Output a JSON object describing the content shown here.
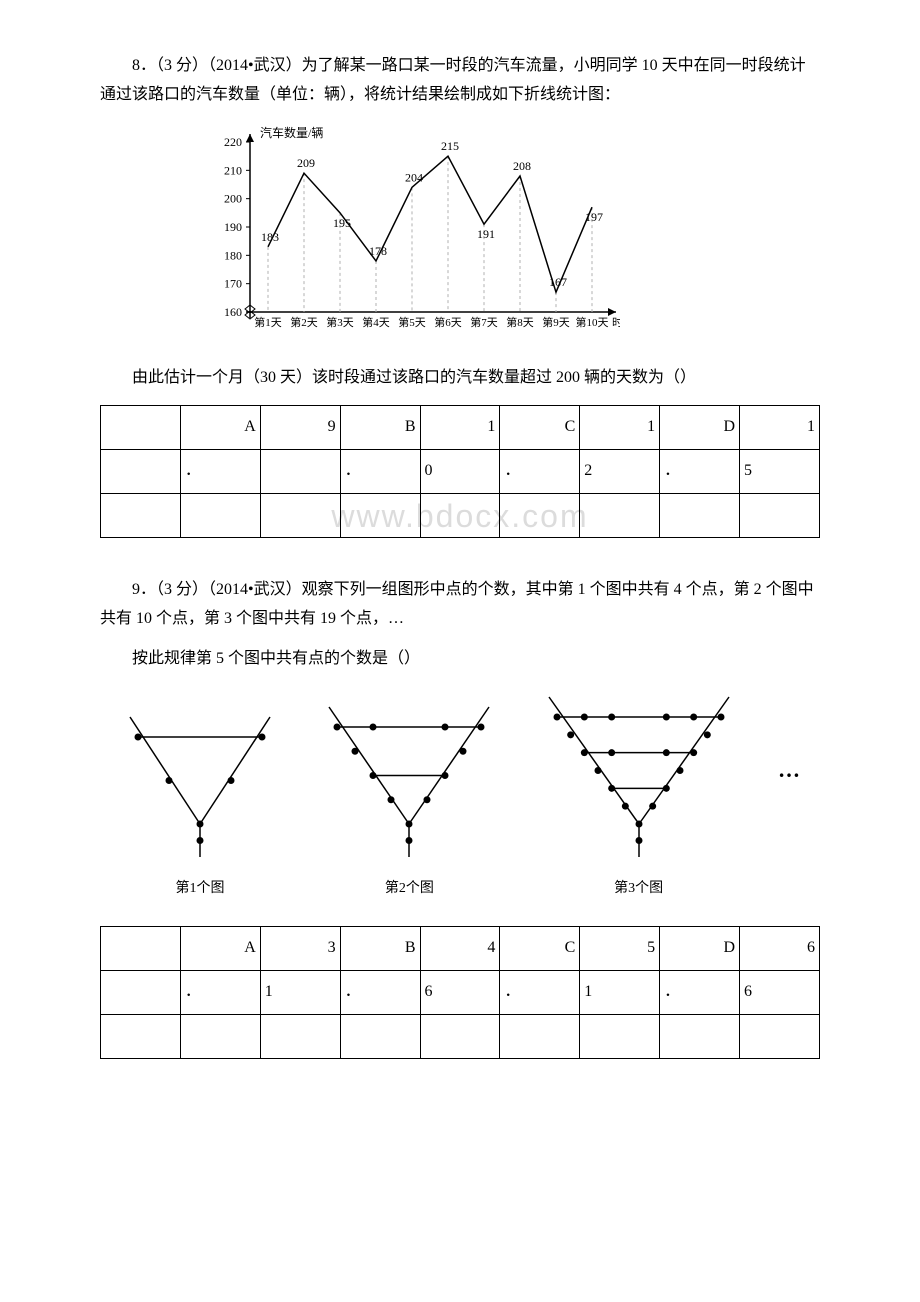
{
  "q8": {
    "intro": "8．（3 分）（2014•武汉）为了解某一路口某一时段的汽车流量，小明同学 10 天中在同一时段统计通过该路口的汽车数量（单位：辆），将统计结果绘制成如下折线统计图：",
    "conclusion": "由此估计一个月（30 天）该时段通过该路口的汽车数量超过 200 辆的天数为（）",
    "chart": {
      "type": "line",
      "y_axis_label": "汽车数量/辆",
      "x_axis_label": "时间",
      "y_ticks": [
        160,
        170,
        180,
        190,
        200,
        210,
        220
      ],
      "x_labels": [
        "第1天",
        "第2天",
        "第3天",
        "第4天",
        "第5天",
        "第6天",
        "第7天",
        "第8天",
        "第9天",
        "第10天"
      ],
      "values": [
        183,
        209,
        195,
        178,
        204,
        215,
        191,
        208,
        167,
        197
      ],
      "line_color": "#000000",
      "grid_color": "#b0b0b0",
      "background_color": "#ffffff",
      "axis_color": "#000000",
      "font_size": 12
    },
    "options": {
      "A": {
        "letter": "A",
        "dot": "．",
        "val1": "9",
        "val2": ""
      },
      "B": {
        "letter": "B",
        "dot": "．",
        "val1": "1",
        "val2": "0"
      },
      "C": {
        "letter": "C",
        "dot": "．",
        "val1": "1",
        "val2": "2"
      },
      "D": {
        "letter": "D",
        "dot": "．",
        "val1": "1",
        "val2": "5"
      }
    }
  },
  "watermark": "www.bdocx.com",
  "q9": {
    "intro": "9．（3 分）（2014•武汉）观察下列一组图形中点的个数，其中第 1 个图中共有 4 个点，第 2 个图中共有 10 个点，第 3 个图中共有 19 个点，…",
    "prompt": "按此规律第 5 个图中共有点的个数是（）",
    "figures": {
      "labels": [
        "第1个图",
        "第2个图",
        "第3个图"
      ],
      "layers": [
        1,
        2,
        3
      ],
      "point_color": "#000000",
      "line_color": "#000000"
    },
    "ellipsis": "…",
    "options": {
      "A": {
        "letter": "A",
        "dot": "．",
        "val1": "3",
        "val2": "1"
      },
      "B": {
        "letter": "B",
        "dot": "．",
        "val1": "4",
        "val2": "6"
      },
      "C": {
        "letter": "C",
        "dot": "．",
        "val1": "5",
        "val2": "1"
      },
      "D": {
        "letter": "D",
        "dot": "．",
        "val1": "6",
        "val2": "6"
      }
    }
  }
}
